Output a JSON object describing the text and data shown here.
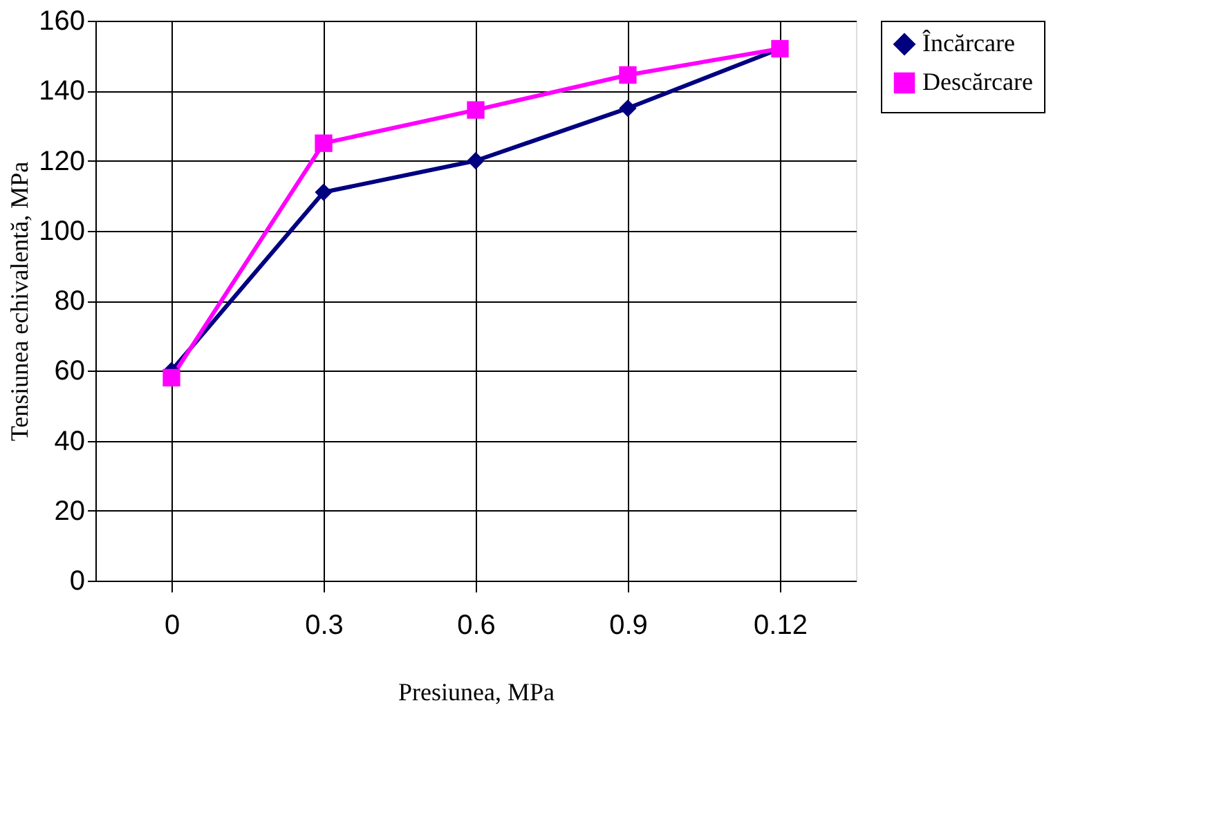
{
  "chart_data": {
    "type": "line",
    "xlabel": "Presiunea, MPa",
    "ylabel": "Tensiunea echivalentă, MPa",
    "categories": [
      "0",
      "0.3",
      "0.6",
      "0.9",
      "0.12"
    ],
    "series": [
      {
        "name": "Încărcare",
        "color": "#000080",
        "marker": "diamond",
        "values": [
          60,
          111,
          120,
          135,
          152
        ]
      },
      {
        "name": "Descărcare",
        "color": "#ff00ff",
        "marker": "square",
        "values": [
          58,
          125,
          134.5,
          144.5,
          152
        ]
      }
    ],
    "ylim": [
      0,
      160
    ],
    "yticks": [
      0,
      20,
      40,
      60,
      80,
      100,
      120,
      140,
      160
    ],
    "grid": true,
    "legend": "right"
  }
}
